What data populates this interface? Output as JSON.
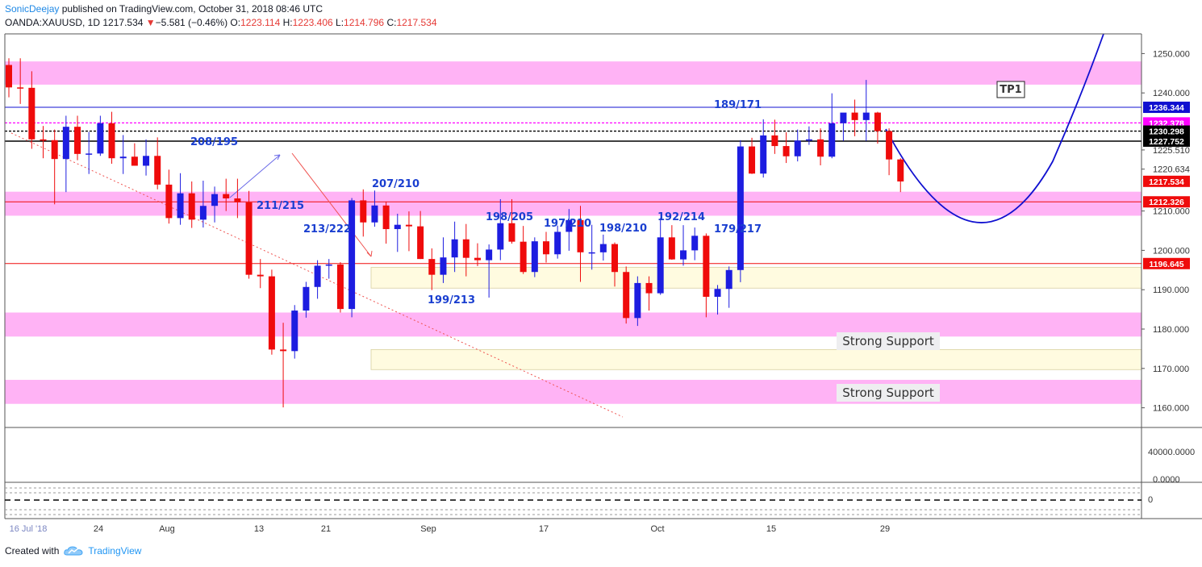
{
  "header": {
    "author": "SonicDeejay",
    "published_text": "published on TradingView.com, October 31, 2018 08:46 UTC",
    "symbol": "OANDA:XAUUSD, 1D",
    "last": "1217.534",
    "change_icon": "down-triangle-icon",
    "change": "−5.581 (−0.46%)",
    "o_label": "O:",
    "o_value": "1223.114",
    "h_label": "H:",
    "h_value": "1223.406",
    "l_label": "L:",
    "l_value": "1214.796",
    "c_label": "C:",
    "c_value": "1217.534"
  },
  "footer": {
    "created_with": "Created with",
    "brand": "TradingView",
    "brand_icon": "tradingview-cloud-icon"
  },
  "colors": {
    "up": "#1d1de0",
    "down": "#ef0b0b",
    "resistance_zone": "#ffb3f5",
    "support_zone": "#fffbe0",
    "projection": "#1010d0",
    "accent_magenta": "#ff00ff"
  },
  "chart_data": {
    "type": "candlestick",
    "symbol": "OANDA:XAUUSD",
    "interval": "1D",
    "ylim": [
      1155,
      1255
    ],
    "ytick_labels": [
      "1250.000",
      "1240.000",
      "1225.510",
      "1220.634",
      "1210.000",
      "1200.000",
      "1190.000",
      "1180.000",
      "1170.000",
      "1160.000"
    ],
    "xtick_labels": [
      "16 Jul '18",
      "24",
      "Aug",
      "13",
      "21",
      "Sep",
      "17",
      "Oct",
      "15",
      "29"
    ],
    "candles": [
      {
        "o": 1247.1,
        "h": 1248.8,
        "l": 1238.9,
        "c": 1241.4
      },
      {
        "o": 1241.4,
        "h": 1248.8,
        "l": 1237.2,
        "c": 1241.3
      },
      {
        "o": 1241.3,
        "h": 1245.5,
        "l": 1225.8,
        "c": 1228.2
      },
      {
        "o": 1228.2,
        "h": 1231.6,
        "l": 1223.4,
        "c": 1228.0
      },
      {
        "o": 1228.0,
        "h": 1230.7,
        "l": 1211.7,
        "c": 1223.2
      },
      {
        "o": 1223.2,
        "h": 1234.2,
        "l": 1214.8,
        "c": 1231.4
      },
      {
        "o": 1231.4,
        "h": 1234.2,
        "l": 1222.9,
        "c": 1224.5
      },
      {
        "o": 1224.5,
        "h": 1230.1,
        "l": 1219.4,
        "c": 1224.6
      },
      {
        "o": 1224.6,
        "h": 1234.2,
        "l": 1224.0,
        "c": 1232.3
      },
      {
        "o": 1232.3,
        "h": 1235.2,
        "l": 1222.0,
        "c": 1223.4
      },
      {
        "o": 1223.4,
        "h": 1229.3,
        "l": 1219.4,
        "c": 1223.8
      },
      {
        "o": 1223.8,
        "h": 1227.2,
        "l": 1221.5,
        "c": 1221.5
      },
      {
        "o": 1221.5,
        "h": 1228.2,
        "l": 1219.0,
        "c": 1224.0
      },
      {
        "o": 1224.0,
        "h": 1228.7,
        "l": 1215.5,
        "c": 1216.7
      },
      {
        "o": 1216.7,
        "h": 1220.5,
        "l": 1206.8,
        "c": 1208.2
      },
      {
        "o": 1208.2,
        "h": 1219.6,
        "l": 1206.5,
        "c": 1214.5
      },
      {
        "o": 1214.5,
        "h": 1217.5,
        "l": 1205.7,
        "c": 1207.8
      },
      {
        "o": 1207.8,
        "h": 1217.7,
        "l": 1205.8,
        "c": 1211.3
      },
      {
        "o": 1211.3,
        "h": 1216.2,
        "l": 1207.1,
        "c": 1214.3
      },
      {
        "o": 1214.3,
        "h": 1218.2,
        "l": 1210.0,
        "c": 1213.2
      },
      {
        "o": 1213.2,
        "h": 1218.2,
        "l": 1208.2,
        "c": 1212.2
      },
      {
        "o": 1212.2,
        "h": 1215.1,
        "l": 1192.8,
        "c": 1193.8
      },
      {
        "o": 1193.8,
        "h": 1197.8,
        "l": 1190.4,
        "c": 1193.4
      },
      {
        "o": 1193.4,
        "h": 1195.1,
        "l": 1173.5,
        "c": 1174.8
      },
      {
        "o": 1174.8,
        "h": 1181.6,
        "l": 1160.1,
        "c": 1174.4
      },
      {
        "o": 1174.4,
        "h": 1186.1,
        "l": 1172.5,
        "c": 1184.7
      },
      {
        "o": 1184.7,
        "h": 1192.0,
        "l": 1182.9,
        "c": 1190.7
      },
      {
        "o": 1190.7,
        "h": 1197.5,
        "l": 1187.7,
        "c": 1196.1
      },
      {
        "o": 1196.1,
        "h": 1197.8,
        "l": 1192.8,
        "c": 1196.4
      },
      {
        "o": 1196.4,
        "h": 1197.0,
        "l": 1184.2,
        "c": 1185.1
      },
      {
        "o": 1185.1,
        "h": 1213.3,
        "l": 1183.0,
        "c": 1212.7
      },
      {
        "o": 1212.7,
        "h": 1215.5,
        "l": 1203.5,
        "c": 1207.1
      },
      {
        "o": 1207.1,
        "h": 1215.2,
        "l": 1206.0,
        "c": 1211.4
      },
      {
        "o": 1211.4,
        "h": 1212.4,
        "l": 1201.7,
        "c": 1205.4
      },
      {
        "o": 1205.4,
        "h": 1209.3,
        "l": 1199.6,
        "c": 1206.5
      },
      {
        "o": 1206.5,
        "h": 1209.9,
        "l": 1199.8,
        "c": 1206.1
      },
      {
        "o": 1206.1,
        "h": 1210.0,
        "l": 1197.8,
        "c": 1197.8
      },
      {
        "o": 1197.8,
        "h": 1200.5,
        "l": 1189.9,
        "c": 1193.8
      },
      {
        "o": 1193.8,
        "h": 1203.3,
        "l": 1191.7,
        "c": 1198.2
      },
      {
        "o": 1198.2,
        "h": 1207.3,
        "l": 1194.5,
        "c": 1202.8
      },
      {
        "o": 1202.8,
        "h": 1206.7,
        "l": 1193.4,
        "c": 1198.1
      },
      {
        "o": 1198.1,
        "h": 1201.8,
        "l": 1196.0,
        "c": 1197.5
      },
      {
        "o": 1197.5,
        "h": 1201.5,
        "l": 1188.0,
        "c": 1200.2
      },
      {
        "o": 1200.2,
        "h": 1213.0,
        "l": 1197.5,
        "c": 1206.9
      },
      {
        "o": 1206.9,
        "h": 1213.0,
        "l": 1201.7,
        "c": 1202.2
      },
      {
        "o": 1202.2,
        "h": 1206.2,
        "l": 1194.0,
        "c": 1194.5
      },
      {
        "o": 1194.5,
        "h": 1203.3,
        "l": 1193.2,
        "c": 1202.3
      },
      {
        "o": 1202.3,
        "h": 1204.7,
        "l": 1196.9,
        "c": 1199.0
      },
      {
        "o": 1199.0,
        "h": 1206.3,
        "l": 1197.9,
        "c": 1204.7
      },
      {
        "o": 1204.7,
        "h": 1210.5,
        "l": 1199.9,
        "c": 1207.7
      },
      {
        "o": 1207.7,
        "h": 1211.3,
        "l": 1192.0,
        "c": 1199.5
      },
      {
        "o": 1199.5,
        "h": 1206.5,
        "l": 1195.1,
        "c": 1199.5
      },
      {
        "o": 1199.5,
        "h": 1204.0,
        "l": 1197.4,
        "c": 1201.6
      },
      {
        "o": 1201.6,
        "h": 1202.0,
        "l": 1190.8,
        "c": 1194.5
      },
      {
        "o": 1194.5,
        "h": 1195.9,
        "l": 1181.4,
        "c": 1182.8
      },
      {
        "o": 1182.8,
        "h": 1193.4,
        "l": 1180.8,
        "c": 1191.7
      },
      {
        "o": 1191.7,
        "h": 1193.4,
        "l": 1184.7,
        "c": 1189.1
      },
      {
        "o": 1189.1,
        "h": 1208.2,
        "l": 1188.7,
        "c": 1203.3
      },
      {
        "o": 1203.3,
        "h": 1206.4,
        "l": 1197.6,
        "c": 1197.7
      },
      {
        "o": 1197.7,
        "h": 1206.4,
        "l": 1196.1,
        "c": 1200.0
      },
      {
        "o": 1200.0,
        "h": 1205.8,
        "l": 1197.5,
        "c": 1203.7
      },
      {
        "o": 1203.7,
        "h": 1204.3,
        "l": 1183.0,
        "c": 1188.2
      },
      {
        "o": 1188.2,
        "h": 1191.2,
        "l": 1183.7,
        "c": 1190.2
      },
      {
        "o": 1190.2,
        "h": 1195.9,
        "l": 1185.4,
        "c": 1195.0
      },
      {
        "o": 1195.0,
        "h": 1228.0,
        "l": 1191.9,
        "c": 1226.4
      },
      {
        "o": 1226.4,
        "h": 1228.6,
        "l": 1219.4,
        "c": 1219.5
      },
      {
        "o": 1219.5,
        "h": 1233.3,
        "l": 1218.5,
        "c": 1229.2
      },
      {
        "o": 1229.2,
        "h": 1233.2,
        "l": 1224.5,
        "c": 1226.5
      },
      {
        "o": 1226.5,
        "h": 1230.0,
        "l": 1222.2,
        "c": 1223.9
      },
      {
        "o": 1223.9,
        "h": 1230.7,
        "l": 1222.6,
        "c": 1227.9
      },
      {
        "o": 1227.9,
        "h": 1231.5,
        "l": 1226.8,
        "c": 1228.2
      },
      {
        "o": 1228.2,
        "h": 1231.0,
        "l": 1221.6,
        "c": 1223.8
      },
      {
        "o": 1223.8,
        "h": 1239.9,
        "l": 1223.4,
        "c": 1232.3
      },
      {
        "o": 1232.3,
        "h": 1234.9,
        "l": 1227.8,
        "c": 1235.0
      },
      {
        "o": 1235.0,
        "h": 1238.3,
        "l": 1229.0,
        "c": 1233.1
      },
      {
        "o": 1233.1,
        "h": 1243.3,
        "l": 1227.8,
        "c": 1235.0
      },
      {
        "o": 1235.0,
        "h": 1235.2,
        "l": 1227.1,
        "c": 1230.3
      },
      {
        "o": 1230.3,
        "h": 1231.0,
        "l": 1219.1,
        "c": 1223.1
      },
      {
        "o": 1223.1,
        "h": 1223.4,
        "l": 1214.8,
        "c": 1217.5
      }
    ],
    "hlines": [
      {
        "name": "resistance-line-blue",
        "value": 1236.344,
        "label": "1236.344",
        "color": "#1010d0",
        "style": "solid"
      },
      {
        "name": "magenta-dotted-line",
        "value": 1232.378,
        "label": "1232.378",
        "color": "#ff00ff",
        "style": "dotted"
      },
      {
        "name": "black-dotted-line",
        "value": 1230.298,
        "label": "1230.298",
        "color": "#000000",
        "style": "dotted"
      },
      {
        "name": "black-solid-line",
        "value": 1227.752,
        "label": "1227.752",
        "color": "#000000",
        "style": "solid"
      },
      {
        "name": "last-price-line",
        "value": 1217.534,
        "label": "1217.534",
        "color": "#ef0b0b",
        "style": "none"
      },
      {
        "name": "red-line-mid",
        "value": 1212.326,
        "label": "1212.326",
        "color": "#ef0b0b",
        "style": "solid"
      },
      {
        "name": "red-line-low",
        "value": 1196.645,
        "label": "1196.645",
        "color": "#ef0b0b",
        "style": "solid"
      }
    ],
    "zones": [
      {
        "name": "resistance-zone-top",
        "kind": "pink",
        "from": 1242.1,
        "to": 1248.0
      },
      {
        "name": "resistance-zone-mid",
        "kind": "pink",
        "from": 1208.8,
        "to": 1214.9
      },
      {
        "name": "support-zone-pink",
        "kind": "pink",
        "from": 1178.1,
        "to": 1184.2
      },
      {
        "name": "support-zone-pink-low",
        "kind": "pink",
        "from": 1161.0,
        "to": 1167.1
      },
      {
        "name": "support-zone-yellow",
        "kind": "yellow",
        "from": 1190.4,
        "to": 1195.7
      },
      {
        "name": "support-zone-yellow-low",
        "kind": "yellow",
        "from": 1169.7,
        "to": 1174.8
      }
    ],
    "annotations": [
      {
        "text": "208/195",
        "candle": 27
      },
      {
        "text": "211/215",
        "candle": 24
      },
      {
        "text": "213/222",
        "candle": 28
      },
      {
        "text": "207/210",
        "candle": 34
      },
      {
        "text": "199/213",
        "candle": 40
      },
      {
        "text": "198/205",
        "candle": 43
      },
      {
        "text": "197/210",
        "candle": 47
      },
      {
        "text": "198/210",
        "candle": 52
      },
      {
        "text": "192/214",
        "candle": 58
      },
      {
        "text": "179/217",
        "candle": 64
      },
      {
        "text": "189/171",
        "candle": 66
      },
      {
        "text": "Strong Support",
        "boxed": true
      },
      {
        "text": "Strong Support",
        "boxed": true
      },
      {
        "text": "TP1",
        "boxed": true
      }
    ],
    "volume_scale_label": "40000.0000",
    "indicator_scale_labels": [
      "0.0000",
      "0"
    ]
  }
}
